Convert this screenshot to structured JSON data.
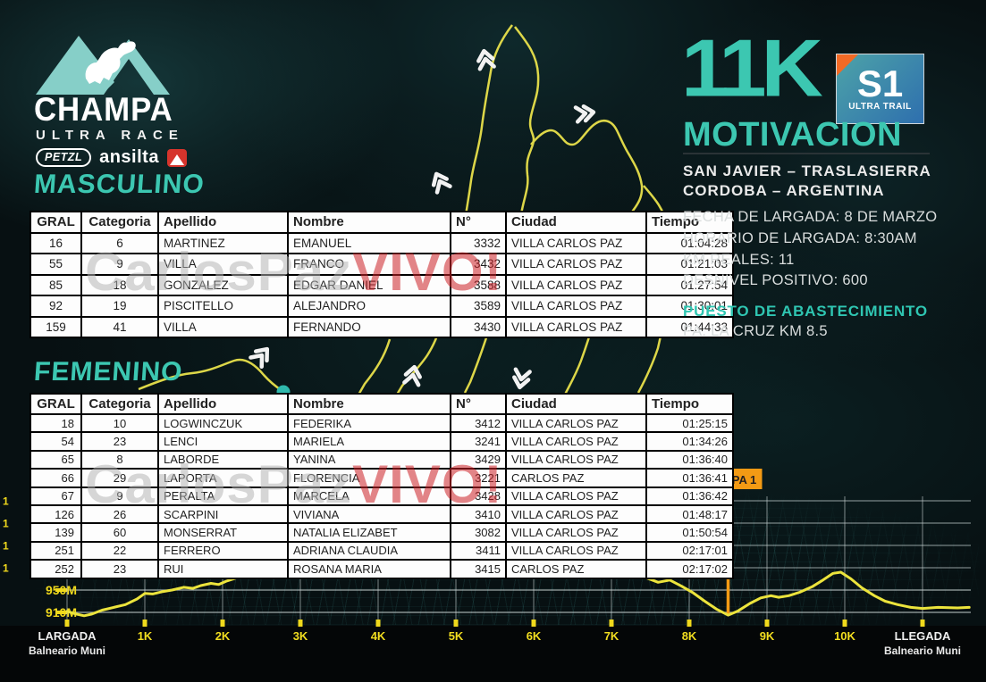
{
  "branding": {
    "logo_title": "CHAMPA",
    "logo_subtitle": "ULTRA RACE",
    "sponsor_petzl": "PETZL",
    "sponsor_ansilta": "ansilta"
  },
  "event": {
    "distance": "11K",
    "name": "MOTIVACION",
    "badge": {
      "code": "S1",
      "label": "ULTRA TRAIL"
    },
    "location_line1": "SAN JAVIER – TRASLASIERRA",
    "location_line2": "CORDOBA – ARGENTINA",
    "details": [
      "FECHA DE LARGADA: 8 DE MARZO",
      "HORARIO DE LARGADA: 8:30AM",
      "KM REALES: 11",
      "DESNIVEL POSITIVO: 600"
    ],
    "aid_station_title": "PUESTO DE ABASTECIMIENTO",
    "aid_station_detail": "PA: LA CRUZ KM 8.5"
  },
  "tables": {
    "headers": [
      "GRAL",
      "Categoria",
      "Apellido",
      "Nombre",
      "N°",
      "Ciudad",
      "Tiempo"
    ],
    "masculino": {
      "title": "MASCULINO",
      "rows": [
        [
          "16",
          "6",
          "MARTINEZ",
          "EMANUEL",
          "3332",
          "VILLA CARLOS PAZ",
          "01:04:28"
        ],
        [
          "55",
          "9",
          "VILLA",
          "FRANCO",
          "3432",
          "VILLA CARLOS PAZ",
          "01:21:03"
        ],
        [
          "85",
          "18",
          "GONZALEZ",
          "EDGAR DANIEL",
          "3588",
          "VILLA CARLOS PAZ",
          "01:27:54"
        ],
        [
          "92",
          "19",
          "PISCITELLO",
          "ALEJANDRO",
          "3589",
          "VILLA CARLOS PAZ",
          "01:30:01"
        ],
        [
          "159",
          "41",
          "VILLA",
          "FERNANDO",
          "3430",
          "VILLA CARLOS PAZ",
          "01:44:33"
        ]
      ]
    },
    "femenino": {
      "title": "FEMENINO",
      "rows": [
        [
          "18",
          "10",
          "LOGWINCZUK",
          "FEDERIKA",
          "3412",
          "VILLA CARLOS PAZ",
          "01:25:15"
        ],
        [
          "54",
          "23",
          "LENCI",
          "MARIELA",
          "3241",
          "VILLA CARLOS PAZ",
          "01:34:26"
        ],
        [
          "65",
          "8",
          "LABORDE",
          "YANINA",
          "3429",
          "VILLA CARLOS PAZ",
          "01:36:40"
        ],
        [
          "66",
          "29",
          "LAPORTA",
          "FLORENCIA",
          "3221",
          "CARLOS PAZ",
          "01:36:41"
        ],
        [
          "67",
          "9",
          "PERALTA",
          "MARCELA",
          "3428",
          "VILLA CARLOS PAZ",
          "01:36:42"
        ],
        [
          "126",
          "26",
          "SCARPINI",
          "VIVIANA",
          "3410",
          "VILLA CARLOS PAZ",
          "01:48:17"
        ],
        [
          "139",
          "60",
          "MONSERRAT",
          "NATALIA ELIZABET",
          "3082",
          "VILLA CARLOS PAZ",
          "01:50:54"
        ],
        [
          "251",
          "22",
          "FERRERO",
          "ADRIANA CLAUDIA",
          "3411",
          "VILLA CARLOS PAZ",
          "02:17:01"
        ],
        [
          "252",
          "23",
          "RUI",
          "ROSANA MARIA",
          "3415",
          "CARLOS PAZ",
          "02:17:02"
        ]
      ]
    }
  },
  "watermark": {
    "part1": "CarlosPaz",
    "part2": "VIVO!"
  },
  "chart_data": {
    "type": "line",
    "title": "",
    "x_tick_labels": [
      "LARGADA",
      "1K",
      "2K",
      "3K",
      "4K",
      "5K",
      "6K",
      "7K",
      "8K",
      "9K",
      "10K",
      "LLEGADA"
    ],
    "x_tick_km": [
      0,
      1,
      2,
      3,
      4,
      5,
      6,
      7,
      8,
      9,
      10,
      11
    ],
    "start_sublabel": "Balneario Muni",
    "finish_sublabel": "Balneario Muni",
    "y_tick_labels": [
      "950M",
      "910M"
    ],
    "y_tick_values_m": [
      950,
      910
    ],
    "y_partial_upper_labels": [
      "1",
      "1",
      "1",
      "1"
    ],
    "grid": true,
    "line_color": "#ece43c",
    "series": [
      {
        "name": "elevation",
        "unit": "m",
        "segments": [
          {
            "km": [
              0,
              0.12,
              0.22,
              0.32,
              0.45,
              0.6,
              0.75,
              0.9,
              1.0,
              1.1,
              1.22,
              1.35,
              1.5,
              1.62,
              1.72,
              1.85,
              1.95,
              2.05,
              2.18,
              2.3,
              2.4
            ],
            "elev_m": [
              912,
              907,
              904,
              907,
              914,
              919,
              924,
              934,
              944,
              943,
              947,
              950,
              955,
              953,
              958,
              962,
              960,
              966,
              972,
              978,
              984
            ]
          },
          {
            "km": [
              7.45,
              7.6,
              7.75,
              7.9,
              8.05,
              8.2,
              8.35,
              8.5,
              8.62,
              8.78,
              8.92,
              9.05,
              9.15,
              9.28,
              9.42,
              9.58,
              9.72,
              9.85,
              9.95,
              10.08,
              10.22,
              10.38,
              10.52,
              10.68,
              10.85,
              11.0,
              11.2,
              11.45,
              11.6
            ],
            "elev_m": [
              972,
              964,
              968,
              957,
              945,
              930,
              916,
              905,
              912,
              926,
              936,
              940,
              937,
              940,
              946,
              956,
              968,
              980,
              982,
              970,
              954,
              940,
              930,
              924,
              919,
              917,
              919,
              918,
              919
            ]
          }
        ]
      }
    ],
    "annotations": [
      {
        "label": "PA 1",
        "km": 8.5
      }
    ]
  },
  "colors": {
    "accent_teal": "#3cc7b1",
    "route_yellow": "#ece43c",
    "pa_orange": "#f39a14",
    "watermark_gray": "#b2b2b2",
    "watermark_red": "#cc2127",
    "badge_blue": "#2e6fae",
    "ansilta_red": "#d6342c"
  }
}
